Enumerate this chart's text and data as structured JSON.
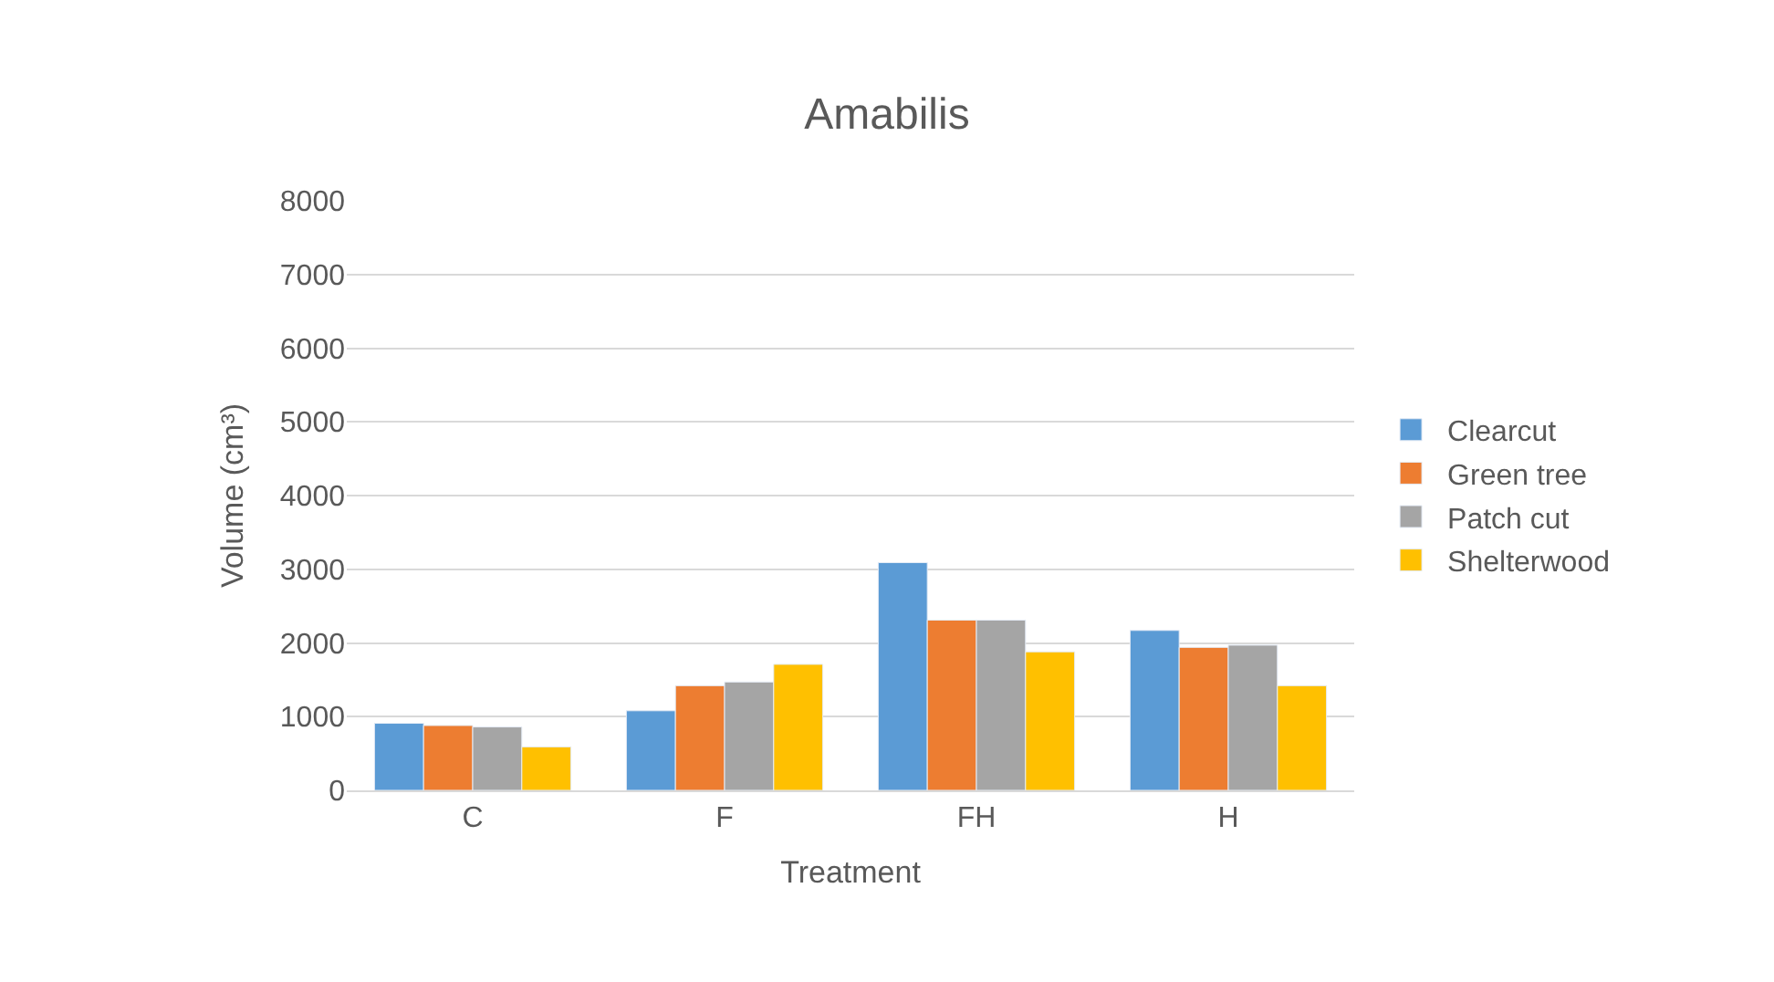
{
  "chart_data": {
    "type": "bar",
    "title": "Amabilis",
    "xlabel": "Treatment",
    "ylabel": "Volume (cm³)",
    "categories": [
      "C",
      "F",
      "FH",
      "H"
    ],
    "series": [
      {
        "name": "Clearcut",
        "color": "#5b9bd5",
        "values": [
          910,
          1080,
          3090,
          2170
        ]
      },
      {
        "name": "Green tree",
        "color": "#ed7d31",
        "values": [
          880,
          1420,
          2310,
          1940
        ]
      },
      {
        "name": "Patch cut",
        "color": "#a5a5a5",
        "values": [
          860,
          1470,
          2310,
          1970
        ]
      },
      {
        "name": "Shelterwood",
        "color": "#ffc000",
        "values": [
          590,
          1710,
          1880,
          1420
        ]
      }
    ],
    "ylim": [
      0,
      8000
    ],
    "yticks": [
      0,
      1000,
      2000,
      3000,
      4000,
      5000,
      6000,
      7000,
      8000
    ],
    "grid": "y",
    "legend": "right"
  }
}
